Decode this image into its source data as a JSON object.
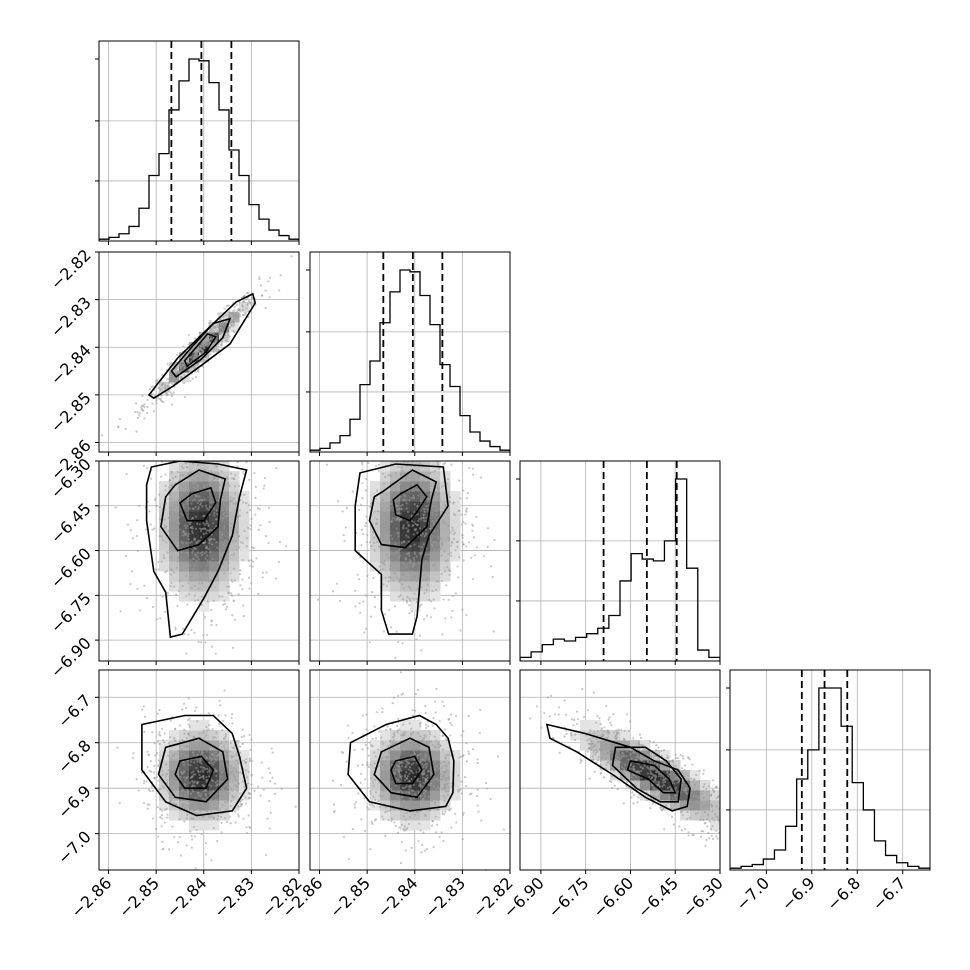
{
  "chart_data": {
    "type": "corner",
    "grid": true,
    "parameters": [
      {
        "range": [
          -2.862,
          -2.82
        ],
        "ticks": [
          -2.86,
          -2.85,
          -2.84,
          -2.83,
          -2.82
        ],
        "tick_labels": [
          "−2.86",
          "−2.85",
          "−2.84",
          "−2.83",
          "−2.82"
        ],
        "quantiles": [
          -2.8468,
          -2.8405,
          -2.8342
        ]
      },
      {
        "range": [
          -2.862,
          -2.82
        ],
        "ticks": [
          -2.86,
          -2.85,
          -2.84,
          -2.83,
          -2.82
        ],
        "tick_labels": [
          "−2.86",
          "−2.85",
          "−2.84",
          "−2.83",
          "−2.82"
        ],
        "quantiles": [
          -2.8466,
          -2.8404,
          -2.8342
        ]
      },
      {
        "range": [
          -6.97,
          -6.3
        ],
        "ticks": [
          -6.9,
          -6.75,
          -6.6,
          -6.45,
          -6.3
        ],
        "tick_labels": [
          "−6.90",
          "−6.75",
          "−6.60",
          "−6.45",
          "−6.30"
        ],
        "quantiles": [
          -6.69,
          -6.545,
          -6.445
        ]
      },
      {
        "range": [
          -7.08,
          -6.64
        ],
        "ticks": [
          -7.0,
          -6.9,
          -6.8,
          -6.7
        ],
        "tick_labels": [
          "−7.0",
          "−6.9",
          "−6.8",
          "−6.7"
        ],
        "quantiles": [
          -6.922,
          -6.872,
          -6.822
        ]
      }
    ],
    "histograms": [
      {
        "bin_edges_range": [
          -2.862,
          -2.82
        ],
        "counts": [
          1,
          2,
          4,
          8,
          18,
          36,
          48,
          72,
          88,
          100,
          99,
          87,
          72,
          50,
          36,
          20,
          12,
          6,
          3,
          1
        ]
      },
      {
        "bin_edges_range": [
          -2.862,
          -2.82
        ],
        "counts": [
          1,
          2,
          5,
          9,
          18,
          37,
          50,
          71,
          88,
          100,
          99,
          86,
          70,
          48,
          36,
          20,
          11,
          6,
          3,
          1
        ]
      },
      {
        "bin_edges_range": [
          -6.97,
          -6.3
        ],
        "counts": [
          2,
          5,
          9,
          12,
          11,
          13,
          15,
          18,
          25,
          44,
          59,
          56,
          55,
          66,
          100,
          51,
          6,
          2
        ]
      },
      {
        "bin_edges_range": [
          -7.08,
          -6.64
        ],
        "counts": [
          1,
          2,
          3,
          6,
          11,
          24,
          50,
          66,
          100,
          100,
          79,
          48,
          33,
          16,
          8,
          4,
          2,
          1
        ]
      }
    ],
    "scatter_pairs": [
      {
        "row": 1,
        "col": 0,
        "mean": [
          -2.8405,
          -2.8404
        ],
        "sd": [
          0.0048,
          0.0048
        ],
        "corr": 0.96
      },
      {
        "row": 2,
        "col": 0,
        "mean": [
          -2.8405,
          -6.52
        ],
        "sd": [
          0.0048,
          0.13
        ],
        "corr": 0.0
      },
      {
        "row": 2,
        "col": 1,
        "mean": [
          -2.8404,
          -6.52
        ],
        "sd": [
          0.0048,
          0.13
        ],
        "corr": 0.0
      },
      {
        "row": 3,
        "col": 0,
        "mean": [
          -2.8405,
          -6.872
        ],
        "sd": [
          0.0048,
          0.055
        ],
        "corr": 0.0
      },
      {
        "row": 3,
        "col": 1,
        "mean": [
          -2.8404,
          -6.872
        ],
        "sd": [
          0.0048,
          0.055
        ],
        "corr": 0.0
      },
      {
        "row": 3,
        "col": 2,
        "mean": [
          -6.52,
          -6.872
        ],
        "sd": [
          0.13,
          0.055
        ],
        "corr": -0.85
      }
    ],
    "contours": [
      {
        "row": 1,
        "col": 0,
        "levels": [
          [
            [
              -2.8505,
              -2.8507
            ],
            [
              -2.8465,
              -2.8482
            ],
            [
              -2.8405,
              -2.8438
            ],
            [
              -2.8345,
              -2.8393
            ],
            [
              -2.8292,
              -2.8307
            ],
            [
              -2.8297,
              -2.8288
            ],
            [
              -2.8332,
              -2.8305
            ],
            [
              -2.8388,
              -2.8358
            ],
            [
              -2.8455,
              -2.8423
            ],
            [
              -2.8515,
              -2.85
            ]
          ],
          [
            [
              -2.8458,
              -2.8462
            ],
            [
              -2.8405,
              -2.8425
            ],
            [
              -2.836,
              -2.838
            ],
            [
              -2.8345,
              -2.834
            ],
            [
              -2.838,
              -2.835
            ],
            [
              -2.843,
              -2.8405
            ],
            [
              -2.8468,
              -2.845
            ]
          ],
          [
            [
              -2.8435,
              -2.844
            ],
            [
              -2.8395,
              -2.841
            ],
            [
              -2.8375,
              -2.8378
            ],
            [
              -2.8392,
              -2.8372
            ],
            [
              -2.842,
              -2.8405
            ],
            [
              -2.844,
              -2.8428
            ]
          ]
        ]
      },
      {
        "row": 2,
        "col": 0,
        "levels": [
          [
            [
              -2.851,
              -6.32
            ],
            [
              -2.845,
              -6.3
            ],
            [
              -2.837,
              -6.31
            ],
            [
              -2.831,
              -6.33
            ],
            [
              -2.8325,
              -6.42
            ],
            [
              -2.834,
              -6.55
            ],
            [
              -2.837,
              -6.67
            ],
            [
              -2.84,
              -6.76
            ],
            [
              -2.8445,
              -6.88
            ],
            [
              -2.847,
              -6.89
            ],
            [
              -2.848,
              -6.74
            ],
            [
              -2.8505,
              -6.67
            ],
            [
              -2.852,
              -6.5
            ],
            [
              -2.852,
              -6.38
            ]
          ],
          [
            [
              -2.846,
              -6.38
            ],
            [
              -2.841,
              -6.33
            ],
            [
              -2.8355,
              -6.36
            ],
            [
              -2.8365,
              -6.43
            ],
            [
              -2.837,
              -6.52
            ],
            [
              -2.841,
              -6.58
            ],
            [
              -2.8455,
              -6.6
            ],
            [
              -2.849,
              -6.52
            ],
            [
              -2.848,
              -6.42
            ]
          ],
          [
            [
              -2.8425,
              -6.41
            ],
            [
              -2.8385,
              -6.39
            ],
            [
              -2.8375,
              -6.44
            ],
            [
              -2.84,
              -6.5
            ],
            [
              -2.8435,
              -6.5
            ],
            [
              -2.845,
              -6.44
            ]
          ]
        ]
      },
      {
        "row": 2,
        "col": 1,
        "levels": [
          [
            [
              -2.8515,
              -6.34
            ],
            [
              -2.844,
              -6.31
            ],
            [
              -2.834,
              -6.32
            ],
            [
              -2.833,
              -6.45
            ],
            [
              -2.837,
              -6.55
            ],
            [
              -2.8385,
              -6.63
            ],
            [
              -2.8395,
              -6.82
            ],
            [
              -2.8405,
              -6.88
            ],
            [
              -2.8455,
              -6.88
            ],
            [
              -2.847,
              -6.8
            ],
            [
              -2.847,
              -6.68
            ],
            [
              -2.8525,
              -6.6
            ],
            [
              -2.8525,
              -6.45
            ]
          ],
          [
            [
              -2.8465,
              -6.4
            ],
            [
              -2.8405,
              -6.33
            ],
            [
              -2.8355,
              -6.37
            ],
            [
              -2.8365,
              -6.43
            ],
            [
              -2.8375,
              -6.52
            ],
            [
              -2.842,
              -6.59
            ],
            [
              -2.847,
              -6.58
            ],
            [
              -2.8495,
              -6.5
            ],
            [
              -2.8485,
              -6.42
            ]
          ],
          [
            [
              -2.843,
              -6.41
            ],
            [
              -2.8395,
              -6.38
            ],
            [
              -2.8375,
              -6.42
            ],
            [
              -2.8395,
              -6.47
            ],
            [
              -2.841,
              -6.5
            ],
            [
              -2.844,
              -6.48
            ],
            [
              -2.8445,
              -6.43
            ]
          ]
        ]
      },
      {
        "row": 3,
        "col": 0,
        "levels": [
          [
            [
              -2.853,
              -6.76
            ],
            [
              -2.844,
              -6.74
            ],
            [
              -2.838,
              -6.74
            ],
            [
              -2.834,
              -6.78
            ],
            [
              -2.8325,
              -6.83
            ],
            [
              -2.831,
              -6.9
            ],
            [
              -2.834,
              -6.95
            ],
            [
              -2.8415,
              -6.96
            ],
            [
              -2.848,
              -6.93
            ],
            [
              -2.853,
              -6.86
            ]
          ],
          [
            [
              -2.848,
              -6.81
            ],
            [
              -2.841,
              -6.79
            ],
            [
              -2.836,
              -6.82
            ],
            [
              -2.835,
              -6.88
            ],
            [
              -2.8395,
              -6.93
            ],
            [
              -2.846,
              -6.92
            ],
            [
              -2.8495,
              -6.87
            ]
          ],
          [
            [
              -2.845,
              -6.84
            ],
            [
              -2.8405,
              -6.83
            ],
            [
              -2.838,
              -6.86
            ],
            [
              -2.8395,
              -6.9
            ],
            [
              -2.844,
              -6.9
            ],
            [
              -2.846,
              -6.87
            ]
          ]
        ]
      },
      {
        "row": 3,
        "col": 1,
        "levels": [
          [
            [
              -2.8535,
              -6.8
            ],
            [
              -2.846,
              -6.76
            ],
            [
              -2.839,
              -6.74
            ],
            [
              -2.8355,
              -6.76
            ],
            [
              -2.833,
              -6.79
            ],
            [
              -2.8318,
              -6.84
            ],
            [
              -2.832,
              -6.91
            ],
            [
              -2.8335,
              -6.94
            ],
            [
              -2.841,
              -6.95
            ],
            [
              -2.8495,
              -6.93
            ],
            [
              -2.854,
              -6.87
            ]
          ],
          [
            [
              -2.847,
              -6.82
            ],
            [
              -2.841,
              -6.79
            ],
            [
              -2.837,
              -6.81
            ],
            [
              -2.836,
              -6.87
            ],
            [
              -2.8395,
              -6.92
            ],
            [
              -2.845,
              -6.91
            ],
            [
              -2.8485,
              -6.87
            ]
          ],
          [
            [
              -2.844,
              -6.84
            ],
            [
              -2.84,
              -6.83
            ],
            [
              -2.8385,
              -6.86
            ],
            [
              -2.8405,
              -6.89
            ],
            [
              -2.844,
              -6.89
            ],
            [
              -2.845,
              -6.86
            ]
          ]
        ]
      },
      {
        "row": 3,
        "col": 2,
        "levels": [
          [
            [
              -6.88,
              -6.76
            ],
            [
              -6.75,
              -6.78
            ],
            [
              -6.6,
              -6.81
            ],
            [
              -6.52,
              -6.84
            ],
            [
              -6.44,
              -6.86
            ],
            [
              -6.4,
              -6.9
            ],
            [
              -6.41,
              -6.94
            ],
            [
              -6.46,
              -6.95
            ],
            [
              -6.55,
              -6.92
            ],
            [
              -6.66,
              -6.87
            ],
            [
              -6.78,
              -6.82
            ],
            [
              -6.87,
              -6.79
            ]
          ],
          [
            [
              -6.65,
              -6.81
            ],
            [
              -6.55,
              -6.81
            ],
            [
              -6.48,
              -6.84
            ],
            [
              -6.43,
              -6.88
            ],
            [
              -6.44,
              -6.93
            ],
            [
              -6.5,
              -6.93
            ],
            [
              -6.58,
              -6.9
            ],
            [
              -6.66,
              -6.85
            ]
          ],
          [
            [
              -6.6,
              -6.84
            ],
            [
              -6.52,
              -6.85
            ],
            [
              -6.47,
              -6.88
            ],
            [
              -6.45,
              -6.91
            ],
            [
              -6.49,
              -6.91
            ],
            [
              -6.54,
              -6.88
            ],
            [
              -6.61,
              -6.86
            ]
          ]
        ]
      }
    ]
  }
}
